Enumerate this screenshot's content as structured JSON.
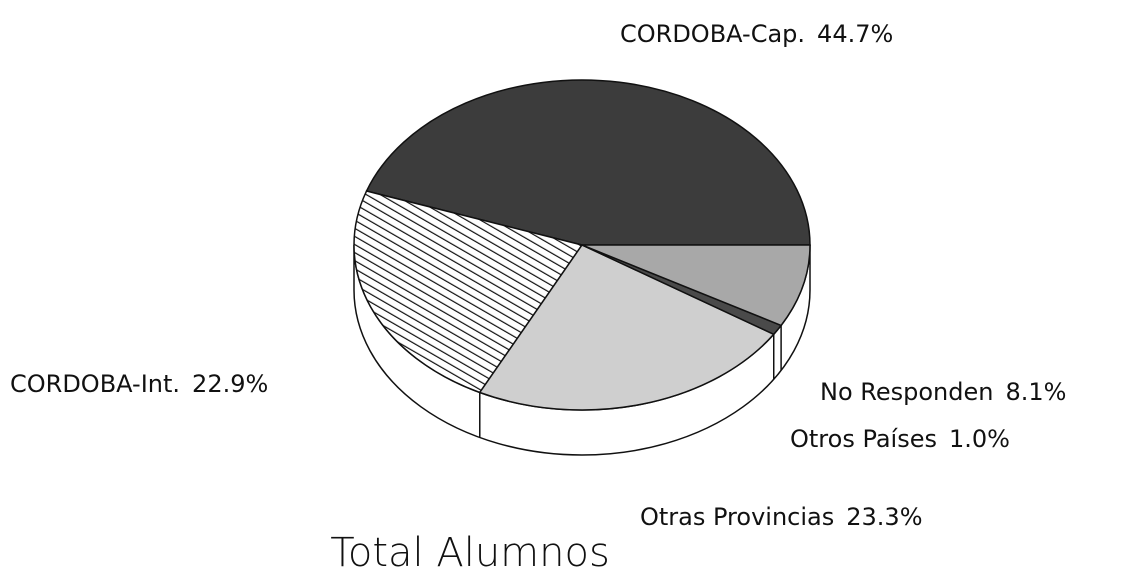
{
  "chart_data": {
    "type": "pie",
    "title": "Total Alumnos",
    "categories": [
      "CORDOBA-Cap.",
      "CORDOBA-Int.",
      "Otras Provincias",
      "Otros Países",
      "No Responden"
    ],
    "values": [
      44.7,
      22.9,
      23.3,
      1.0,
      8.1
    ],
    "value_labels": [
      "44.7%",
      "22.9%",
      "23.3%",
      "1.0%",
      "8.1%"
    ],
    "colors": [
      "#3c3c3c",
      "#8a8a8a",
      "#cfcfcf",
      "#4a4a4a",
      "#a8a8a8"
    ]
  }
}
